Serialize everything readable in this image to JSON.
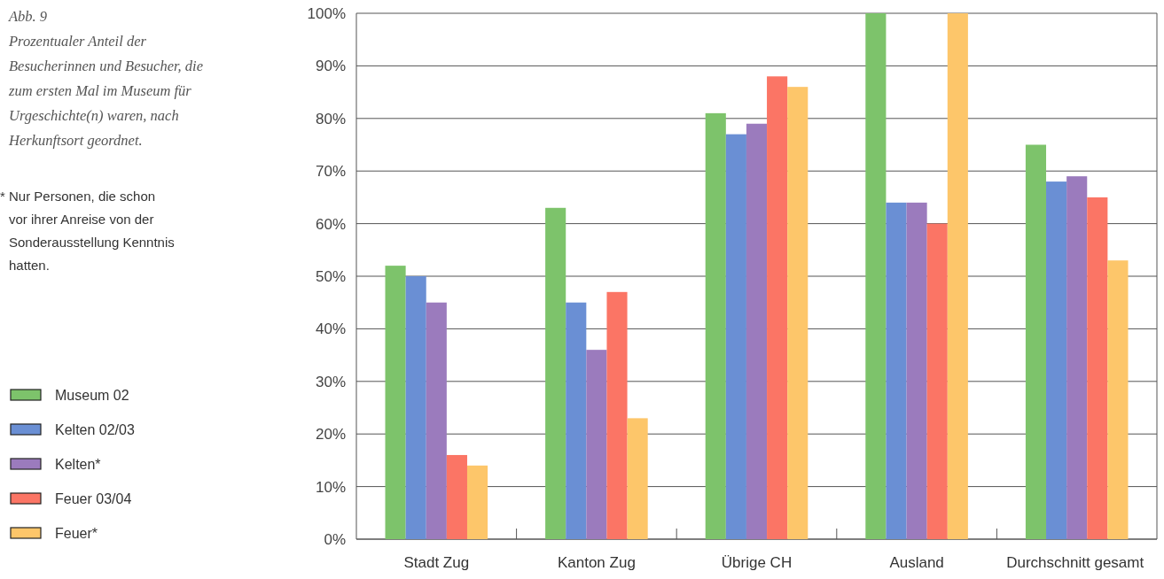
{
  "chart_data": {
    "type": "bar",
    "title": "Abb. 9",
    "subtitle": "Prozentualer Anteil der Besucherinnen und Besucher, die zum ersten Mal im Museum für Urgeschichte(n) waren, nach Herkunftsort geordnet.",
    "annotations": [
      "* Nur Personen, die schon vor ihrer Anreise von der Sonderausstellung Kenntnis hatten."
    ],
    "categories": [
      "Stadt Zug",
      "Kanton Zug",
      "Übrige CH",
      "Ausland",
      "Durchschnitt gesamt"
    ],
    "series": [
      {
        "name": "Museum 02",
        "color": "#7dc36b",
        "values": [
          52,
          63,
          81,
          100,
          75
        ]
      },
      {
        "name": "Kelten 02/03",
        "color": "#6a8fd4",
        "values": [
          50,
          45,
          77,
          64,
          68
        ]
      },
      {
        "name": "Kelten*",
        "color": "#9b7bbd",
        "values": [
          45,
          36,
          79,
          64,
          69
        ]
      },
      {
        "name": "Feuer 03/04",
        "color": "#fb7565",
        "values": [
          16,
          47,
          88,
          60,
          65
        ]
      },
      {
        "name": "Feuer*",
        "color": "#fdc66a",
        "values": [
          14,
          23,
          86,
          100,
          53
        ]
      }
    ],
    "ylim": [
      0,
      100
    ],
    "yticks": [
      {
        "value": 0,
        "label": "0%"
      },
      {
        "value": 10,
        "label": "10%"
      },
      {
        "value": 20,
        "label": "20%"
      },
      {
        "value": 30,
        "label": "30%"
      },
      {
        "value": 40,
        "label": "40%"
      },
      {
        "value": 50,
        "label": "50%"
      },
      {
        "value": 60,
        "label": "60%"
      },
      {
        "value": 70,
        "label": "70%"
      },
      {
        "value": 80,
        "label": "80%"
      },
      {
        "value": 90,
        "label": "90%"
      },
      {
        "value": 100,
        "label": "100%"
      }
    ],
    "grid": "y",
    "legend": "left"
  }
}
